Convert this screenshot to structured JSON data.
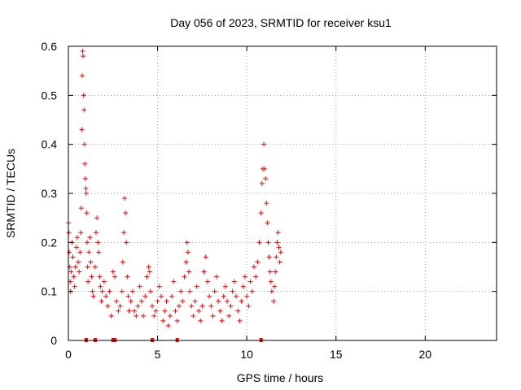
{
  "chart_data": {
    "type": "scatter",
    "title": "Day 056 of 2023, SRMTID for receiver ksu1",
    "xlabel": "GPS time / hours",
    "ylabel": "SRMTID / TECUs",
    "xlim": [
      0,
      24
    ],
    "ylim": [
      0,
      0.6
    ],
    "x_ticks": [
      0,
      5,
      10,
      15,
      20
    ],
    "x_tick_labels": [
      "0",
      "5",
      "10",
      "15",
      "20"
    ],
    "y_ticks": [
      0,
      0.1,
      0.2,
      0.3,
      0.4,
      0.5,
      0.6
    ],
    "y_tick_labels": [
      "0",
      "0.1",
      "0.2",
      "0.3",
      "0.4",
      "0.5",
      "0.6"
    ],
    "grid": true,
    "marker": "plus",
    "color": "#ff0000",
    "series": [
      {
        "name": "SRMTID",
        "points": [
          [
            0.0,
            0.24
          ],
          [
            0.02,
            0.22
          ],
          [
            0.05,
            0.18
          ],
          [
            0.08,
            0.15
          ],
          [
            0.1,
            0.12
          ],
          [
            0.12,
            0.1
          ],
          [
            0.15,
            0.14
          ],
          [
            0.2,
            0.2
          ],
          [
            0.25,
            0.17
          ],
          [
            0.3,
            0.13
          ],
          [
            0.35,
            0.11
          ],
          [
            0.4,
            0.15
          ],
          [
            0.45,
            0.19
          ],
          [
            0.5,
            0.21
          ],
          [
            0.55,
            0.16
          ],
          [
            0.6,
            0.14
          ],
          [
            0.65,
            0.18
          ],
          [
            0.7,
            0.22
          ],
          [
            0.72,
            0.27
          ],
          [
            0.75,
            0.43
          ],
          [
            0.78,
            0.54
          ],
          [
            0.8,
            0.59
          ],
          [
            0.82,
            0.58
          ],
          [
            0.85,
            0.5
          ],
          [
            0.88,
            0.47
          ],
          [
            0.9,
            0.4
          ],
          [
            0.92,
            0.36
          ],
          [
            0.95,
            0.33
          ],
          [
            0.98,
            0.31
          ],
          [
            1.0,
            0.3
          ],
          [
            1.02,
            0.26
          ],
          [
            1.05,
            0.2
          ],
          [
            1.08,
            0.15
          ],
          [
            1.1,
            0.12
          ],
          [
            1.15,
            0.18
          ],
          [
            1.2,
            0.21
          ],
          [
            1.25,
            0.16
          ],
          [
            1.3,
            0.13
          ],
          [
            1.35,
            0.1
          ],
          [
            1.4,
            0.09
          ],
          [
            1.5,
            0.15
          ],
          [
            1.55,
            0.22
          ],
          [
            1.6,
            0.25
          ],
          [
            1.65,
            0.2
          ],
          [
            1.7,
            0.18
          ],
          [
            1.75,
            0.13
          ],
          [
            1.8,
            0.11
          ],
          [
            1.85,
            0.08
          ],
          [
            1.9,
            0.1
          ],
          [
            2.0,
            0.12
          ],
          [
            2.1,
            0.09
          ],
          [
            2.2,
            0.07
          ],
          [
            2.3,
            0.1
          ],
          [
            2.4,
            0.05
          ],
          [
            2.5,
            0.14
          ],
          [
            2.6,
            0.13
          ],
          [
            2.7,
            0.08
          ],
          [
            2.8,
            0.06
          ],
          [
            2.9,
            0.07
          ],
          [
            3.0,
            0.1
          ],
          [
            3.05,
            0.16
          ],
          [
            3.1,
            0.22
          ],
          [
            3.15,
            0.29
          ],
          [
            3.2,
            0.26
          ],
          [
            3.25,
            0.2
          ],
          [
            3.3,
            0.13
          ],
          [
            3.35,
            0.09
          ],
          [
            3.4,
            0.06
          ],
          [
            3.5,
            0.08
          ],
          [
            3.6,
            0.1
          ],
          [
            3.7,
            0.06
          ],
          [
            3.8,
            0.05
          ],
          [
            3.9,
            0.07
          ],
          [
            4.0,
            0.11
          ],
          [
            4.1,
            0.08
          ],
          [
            4.2,
            0.05
          ],
          [
            4.3,
            0.09
          ],
          [
            4.4,
            0.13
          ],
          [
            4.5,
            0.15
          ],
          [
            4.55,
            0.14
          ],
          [
            4.6,
            0.1
          ],
          [
            4.7,
            0.07
          ],
          [
            4.8,
            0.05
          ],
          [
            4.9,
            0.06
          ],
          [
            5.0,
            0.08
          ],
          [
            5.1,
            0.11
          ],
          [
            5.2,
            0.09
          ],
          [
            5.3,
            0.04
          ],
          [
            5.4,
            0.06
          ],
          [
            5.5,
            0.08
          ],
          [
            5.6,
            0.03
          ],
          [
            5.7,
            0.05
          ],
          [
            5.8,
            0.09
          ],
          [
            5.9,
            0.12
          ],
          [
            6.0,
            0.06
          ],
          [
            6.1,
            0.04
          ],
          [
            6.2,
            0.07
          ],
          [
            6.3,
            0.1
          ],
          [
            6.4,
            0.08
          ],
          [
            6.5,
            0.13
          ],
          [
            6.6,
            0.16
          ],
          [
            6.65,
            0.2
          ],
          [
            6.7,
            0.18
          ],
          [
            6.75,
            0.14
          ],
          [
            6.8,
            0.1
          ],
          [
            6.9,
            0.07
          ],
          [
            7.0,
            0.05
          ],
          [
            7.1,
            0.08
          ],
          [
            7.2,
            0.11
          ],
          [
            7.3,
            0.06
          ],
          [
            7.4,
            0.04
          ],
          [
            7.5,
            0.07
          ],
          [
            7.6,
            0.14
          ],
          [
            7.7,
            0.17
          ],
          [
            7.8,
            0.12
          ],
          [
            7.9,
            0.09
          ],
          [
            8.0,
            0.07
          ],
          [
            8.1,
            0.05
          ],
          [
            8.2,
            0.1
          ],
          [
            8.3,
            0.13
          ],
          [
            8.4,
            0.08
          ],
          [
            8.5,
            0.06
          ],
          [
            8.6,
            0.04
          ],
          [
            8.7,
            0.09
          ],
          [
            8.8,
            0.11
          ],
          [
            8.9,
            0.08
          ],
          [
            9.0,
            0.05
          ],
          [
            9.1,
            0.07
          ],
          [
            9.2,
            0.1
          ],
          [
            9.3,
            0.12
          ],
          [
            9.4,
            0.09
          ],
          [
            9.5,
            0.06
          ],
          [
            9.6,
            0.04
          ],
          [
            9.7,
            0.08
          ],
          [
            9.8,
            0.11
          ],
          [
            9.9,
            0.13
          ],
          [
            10.0,
            0.09
          ],
          [
            10.1,
            0.07
          ],
          [
            10.2,
            0.12
          ],
          [
            10.3,
            0.1
          ],
          [
            10.4,
            0.15
          ],
          [
            10.5,
            0.13
          ],
          [
            10.6,
            0.16
          ],
          [
            10.7,
            0.2
          ],
          [
            10.8,
            0.26
          ],
          [
            10.85,
            0.32
          ],
          [
            10.9,
            0.35
          ],
          [
            10.95,
            0.4
          ],
          [
            11.0,
            0.35
          ],
          [
            11.05,
            0.33
          ],
          [
            11.1,
            0.28
          ],
          [
            11.15,
            0.24
          ],
          [
            11.2,
            0.2
          ],
          [
            11.25,
            0.17
          ],
          [
            11.3,
            0.14
          ],
          [
            11.35,
            0.12
          ],
          [
            11.4,
            0.1
          ],
          [
            11.5,
            0.08
          ],
          [
            11.55,
            0.11
          ],
          [
            11.6,
            0.14
          ],
          [
            11.65,
            0.17
          ],
          [
            11.7,
            0.2
          ],
          [
            11.75,
            0.22
          ],
          [
            11.8,
            0.19
          ],
          [
            11.85,
            0.16
          ],
          [
            11.9,
            0.18
          ]
        ],
        "zero_points": [
          1.0,
          1.5,
          2.5,
          2.6,
          4.7,
          6.1,
          10.8
        ]
      }
    ]
  }
}
